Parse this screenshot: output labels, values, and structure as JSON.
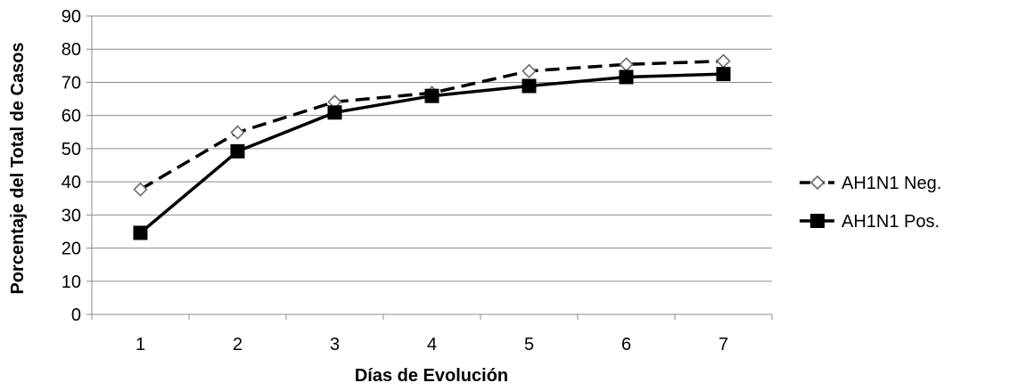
{
  "chart_data": {
    "type": "line",
    "categories": [
      "1",
      "2",
      "3",
      "4",
      "5",
      "6",
      "7"
    ],
    "y_tick_labels": [
      "0",
      "10",
      "20",
      "30",
      "40",
      "50",
      "60",
      "70",
      "80",
      "90"
    ],
    "ylim": [
      0,
      90
    ],
    "xlabel": "Días de Evolución",
    "ylabel": "Porcentaje del Total de Casos",
    "grid": "horizontal",
    "legend_position": "right",
    "series": [
      {
        "name": "AH1N1 Neg.",
        "values": [
          37.7,
          54.9,
          64.1,
          66.8,
          73.4,
          75.4,
          76.4
        ],
        "line_style": "dashed",
        "marker": "open-diamond",
        "color": "#000000"
      },
      {
        "name": "AH1N1 Pos.",
        "values": [
          24.6,
          49.2,
          60.9,
          65.9,
          68.9,
          71.6,
          72.5
        ],
        "line_style": "solid",
        "marker": "filled-square",
        "color": "#000000"
      }
    ]
  }
}
